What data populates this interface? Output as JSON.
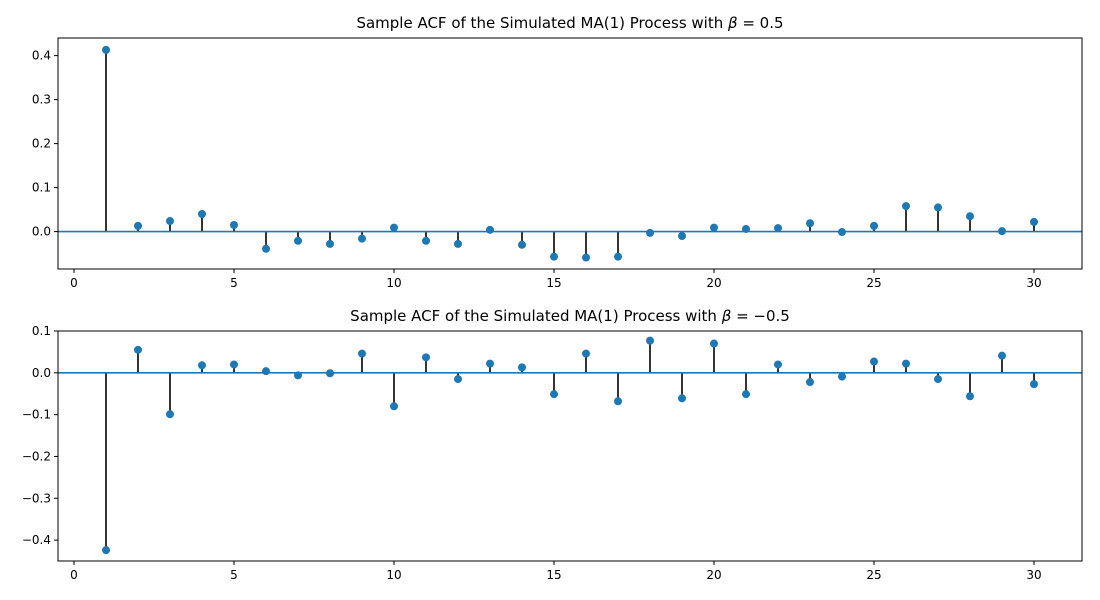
{
  "chart_data": [
    {
      "type": "stem",
      "title_prefix": "Sample ACF of the Simulated MA(1) Process with ",
      "title_symbol": "β",
      "title_suffix": " = 0.5",
      "xlabel": "",
      "ylabel": "",
      "xlim": [
        -0.5,
        31.5
      ],
      "ylim": [
        -0.085,
        0.44
      ],
      "xticks": [
        0,
        5,
        10,
        15,
        20,
        25,
        30
      ],
      "yticks": [
        0.0,
        0.1,
        0.2,
        0.3,
        0.4
      ],
      "ytick_labels": [
        "0.0",
        "0.1",
        "0.2",
        "0.3",
        "0.4"
      ],
      "grid": false,
      "x": [
        1,
        2,
        3,
        4,
        5,
        6,
        7,
        8,
        9,
        10,
        11,
        12,
        13,
        14,
        15,
        16,
        17,
        18,
        19,
        20,
        21,
        22,
        23,
        24,
        25,
        26,
        27,
        28,
        29,
        30
      ],
      "values": [
        0.413,
        0.013,
        0.024,
        0.04,
        0.015,
        -0.039,
        -0.021,
        -0.028,
        -0.016,
        0.009,
        -0.021,
        -0.028,
        0.004,
        -0.03,
        -0.057,
        -0.059,
        -0.057,
        -0.003,
        -0.01,
        0.009,
        0.006,
        0.008,
        0.019,
        -0.001,
        0.013,
        0.058,
        0.055,
        0.035,
        0.001,
        0.022
      ],
      "colors": {
        "marker": "#1f77b4",
        "stem": "#000000",
        "baseline": "#1f77b4"
      }
    },
    {
      "type": "stem",
      "title_prefix": "Sample ACF of the Simulated MA(1) Process with ",
      "title_symbol": "β",
      "title_suffix": " = −0.5",
      "xlabel": "",
      "ylabel": "",
      "xlim": [
        -0.5,
        31.5
      ],
      "ylim": [
        -0.45,
        0.1
      ],
      "xticks": [
        0,
        5,
        10,
        15,
        20,
        25,
        30
      ],
      "yticks": [
        -0.4,
        -0.3,
        -0.2,
        -0.1,
        0.0,
        0.1
      ],
      "ytick_labels": [
        "−0.4",
        "−0.3",
        "−0.2",
        "−0.1",
        "0.0",
        "0.1"
      ],
      "grid": false,
      "x": [
        1,
        2,
        3,
        4,
        5,
        6,
        7,
        8,
        9,
        10,
        11,
        12,
        13,
        14,
        15,
        16,
        17,
        18,
        19,
        20,
        21,
        22,
        23,
        24,
        25,
        26,
        27,
        28,
        29,
        30
      ],
      "values": [
        -0.424,
        0.055,
        -0.099,
        0.018,
        0.02,
        0.004,
        -0.006,
        -0.001,
        0.046,
        -0.08,
        0.037,
        -0.015,
        0.022,
        0.013,
        -0.051,
        0.046,
        -0.068,
        0.077,
        -0.061,
        0.07,
        -0.051,
        0.02,
        -0.022,
        -0.009,
        0.027,
        0.022,
        -0.015,
        -0.056,
        0.041,
        -0.027
      ],
      "colors": {
        "marker": "#1f77b4",
        "stem": "#000000",
        "baseline": "#1f77b4"
      }
    }
  ]
}
